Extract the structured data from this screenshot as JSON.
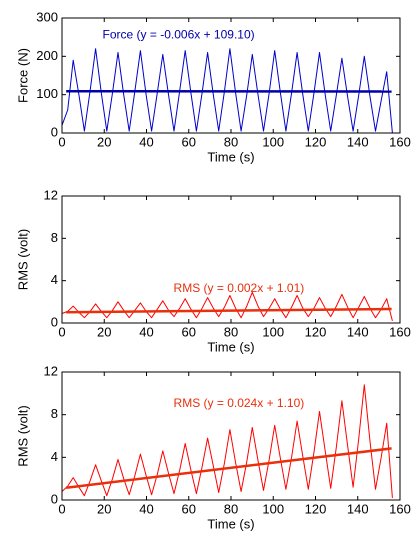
{
  "chart_data": [
    {
      "type": "line",
      "xlabel": "Time (s)",
      "ylabel": "Force (N)",
      "x": [
        0,
        2.7,
        5.3,
        8,
        10.6,
        13.3,
        15.9,
        18.6,
        21.2,
        23.9,
        26.5,
        29.2,
        31.8,
        34.5,
        37.1,
        39.8,
        42.4,
        45.1,
        47.7,
        50.4,
        53,
        55.7,
        58.3,
        61,
        63.6,
        66.3,
        68.9,
        71.6,
        74.2,
        76.9,
        79.5,
        82.2,
        84.8,
        87.5,
        90.1,
        92.8,
        95.4,
        98.1,
        100.7,
        103.4,
        106,
        108.7,
        111.3,
        114,
        116.6,
        119.3,
        121.9,
        124.6,
        127.2,
        129.9,
        132.5,
        135.2,
        137.8,
        140.5,
        143.1,
        145.8,
        148.4,
        151.1,
        153.7,
        156.4
      ],
      "xlim": [
        0,
        160
      ],
      "xticks": [
        0,
        20,
        40,
        60,
        80,
        100,
        120,
        140,
        160
      ],
      "ylim": [
        0,
        300
      ],
      "yticks": [
        0,
        100,
        200,
        300
      ],
      "series": [
        {
          "color": "#0000cc",
          "values": [
            20,
            60,
            190,
            100,
            5,
            110,
            220,
            105,
            5,
            105,
            210,
            100,
            5,
            110,
            215,
            100,
            5,
            105,
            205,
            100,
            5,
            110,
            215,
            105,
            5,
            105,
            210,
            100,
            5,
            110,
            220,
            105,
            5,
            100,
            205,
            100,
            5,
            105,
            215,
            105,
            5,
            105,
            210,
            100,
            5,
            105,
            210,
            100,
            5,
            100,
            195,
            95,
            5,
            100,
            200,
            95,
            5,
            85,
            160,
            0
          ]
        },
        {
          "name": "Force (y = -0.006x + 109.10)",
          "color": "#0000aa",
          "x": [
            2,
            156
          ],
          "values": [
            109.09,
            108.16
          ]
        }
      ]
    },
    {
      "type": "line",
      "xlabel": "Time (s)",
      "ylabel": "RMS (volt)",
      "x": [
        0,
        2.7,
        5.3,
        8,
        10.6,
        13.3,
        15.9,
        18.6,
        21.2,
        23.9,
        26.5,
        29.2,
        31.8,
        34.5,
        37.1,
        39.8,
        42.4,
        45.1,
        47.7,
        50.4,
        53,
        55.7,
        58.3,
        61,
        63.6,
        66.3,
        68.9,
        71.6,
        74.2,
        76.9,
        79.5,
        82.2,
        84.8,
        87.5,
        90.1,
        92.8,
        95.4,
        98.1,
        100.7,
        103.4,
        106,
        108.7,
        111.3,
        114,
        116.6,
        119.3,
        121.9,
        124.6,
        127.2,
        129.9,
        132.5,
        135.2,
        137.8,
        140.5,
        143.1,
        145.8,
        148.4,
        151.1,
        153.7,
        156.4
      ],
      "xlim": [
        0,
        160
      ],
      "xticks": [
        0,
        20,
        40,
        60,
        80,
        100,
        120,
        140,
        160
      ],
      "ylim": [
        0,
        12
      ],
      "yticks": [
        0,
        4,
        8,
        12
      ],
      "series": [
        {
          "color": "#ff0000",
          "values": [
            0.9,
            1.1,
            1.6,
            1.0,
            0.5,
            1.1,
            1.8,
            1.1,
            0.5,
            1.2,
            2.0,
            1.2,
            0.5,
            1.2,
            1.9,
            1.1,
            0.5,
            1.3,
            2.1,
            1.2,
            0.6,
            1.4,
            2.3,
            1.3,
            0.5,
            1.4,
            2.4,
            1.4,
            0.6,
            1.5,
            2.6,
            1.4,
            0.5,
            1.6,
            2.9,
            1.6,
            0.6,
            1.4,
            2.3,
            1.3,
            0.5,
            1.5,
            2.6,
            1.4,
            0.6,
            1.4,
            2.4,
            1.4,
            0.6,
            1.6,
            2.7,
            1.5,
            0.5,
            1.5,
            2.5,
            1.4,
            0.5,
            1.3,
            2.3,
            0.2
          ]
        },
        {
          "name": "RMS (y = 0.002x + 1.01)",
          "color": "#e8300c",
          "x": [
            2,
            156
          ],
          "values": [
            1.01,
            1.32
          ]
        }
      ]
    },
    {
      "type": "line",
      "xlabel": "Time (s)",
      "ylabel": "RMS (volt)",
      "x": [
        0,
        2.7,
        5.3,
        8,
        10.6,
        13.3,
        15.9,
        18.6,
        21.2,
        23.9,
        26.5,
        29.2,
        31.8,
        34.5,
        37.1,
        39.8,
        42.4,
        45.1,
        47.7,
        50.4,
        53,
        55.7,
        58.3,
        61,
        63.6,
        66.3,
        68.9,
        71.6,
        74.2,
        76.9,
        79.5,
        82.2,
        84.8,
        87.5,
        90.1,
        92.8,
        95.4,
        98.1,
        100.7,
        103.4,
        106,
        108.7,
        111.3,
        114,
        116.6,
        119.3,
        121.9,
        124.6,
        127.2,
        129.9,
        132.5,
        135.2,
        137.8,
        140.5,
        143.1,
        145.8,
        148.4,
        151.1,
        153.7,
        156.4
      ],
      "xlim": [
        0,
        160
      ],
      "xticks": [
        0,
        20,
        40,
        60,
        80,
        100,
        120,
        140,
        160
      ],
      "ylim": [
        0,
        12
      ],
      "yticks": [
        0,
        4,
        8,
        12
      ],
      "series": [
        {
          "color": "#ff0000",
          "values": [
            0.8,
            1.3,
            2.1,
            1.2,
            0.4,
            1.8,
            3.3,
            1.8,
            0.4,
            2.0,
            3.8,
            2.0,
            0.5,
            2.3,
            4.3,
            2.3,
            0.5,
            2.4,
            4.6,
            2.5,
            0.6,
            2.8,
            5.3,
            2.8,
            0.6,
            3.1,
            5.8,
            3.2,
            0.7,
            3.5,
            6.6,
            3.5,
            0.8,
            3.6,
            6.8,
            3.7,
            0.9,
            3.8,
            7.0,
            3.9,
            1.0,
            4.0,
            7.4,
            4.1,
            1.0,
            4.5,
            8.3,
            4.6,
            1.1,
            5.0,
            9.3,
            5.1,
            1.2,
            5.8,
            10.8,
            5.5,
            1.0,
            4.0,
            7.2,
            0.2
          ]
        },
        {
          "name": "RMS (y = 0.024x + 1.10)",
          "color": "#e8300c",
          "x": [
            2,
            156
          ],
          "values": [
            1.15,
            4.84
          ]
        }
      ]
    }
  ]
}
